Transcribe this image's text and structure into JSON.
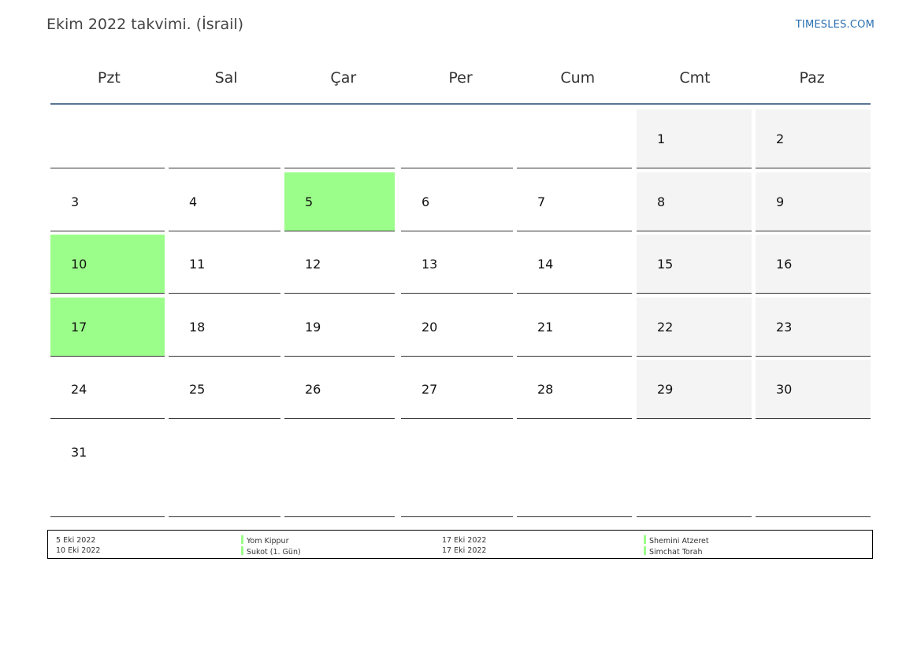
{
  "title": "Ekim 2022 takvimi. (İsrail)",
  "site": "TIMESLES.COM",
  "weekdays": [
    "Pzt",
    "Sal",
    "Çar",
    "Per",
    "Cum",
    "Cmt",
    "Paz"
  ],
  "weeks": [
    [
      "",
      "",
      "",
      "",
      "",
      "1",
      "2"
    ],
    [
      "3",
      "4",
      "5",
      "6",
      "7",
      "8",
      "9"
    ],
    [
      "10",
      "11",
      "12",
      "13",
      "14",
      "15",
      "16"
    ],
    [
      "17",
      "18",
      "19",
      "20",
      "21",
      "22",
      "23"
    ],
    [
      "24",
      "25",
      "26",
      "27",
      "28",
      "29",
      "30"
    ],
    [
      "31",
      "",
      "",
      "",
      "",
      "",
      ""
    ]
  ],
  "holiday_days": [
    "5",
    "10",
    "17"
  ],
  "colors": {
    "holiday": "#9cfe8a",
    "weekend": "#f4f4f4",
    "header_rule": "#5a7694",
    "link": "#2a6fb0"
  },
  "legend": {
    "col1_dates": [
      "5 Eki 2022",
      "10 Eki 2022"
    ],
    "col1_names": [
      "Yom Kippur",
      "Sukot (1. Gün)"
    ],
    "col2_dates": [
      "17 Eki 2022",
      "17 Eki 2022"
    ],
    "col2_names": [
      "Shemini Atzeret",
      "Simchat Torah"
    ]
  }
}
